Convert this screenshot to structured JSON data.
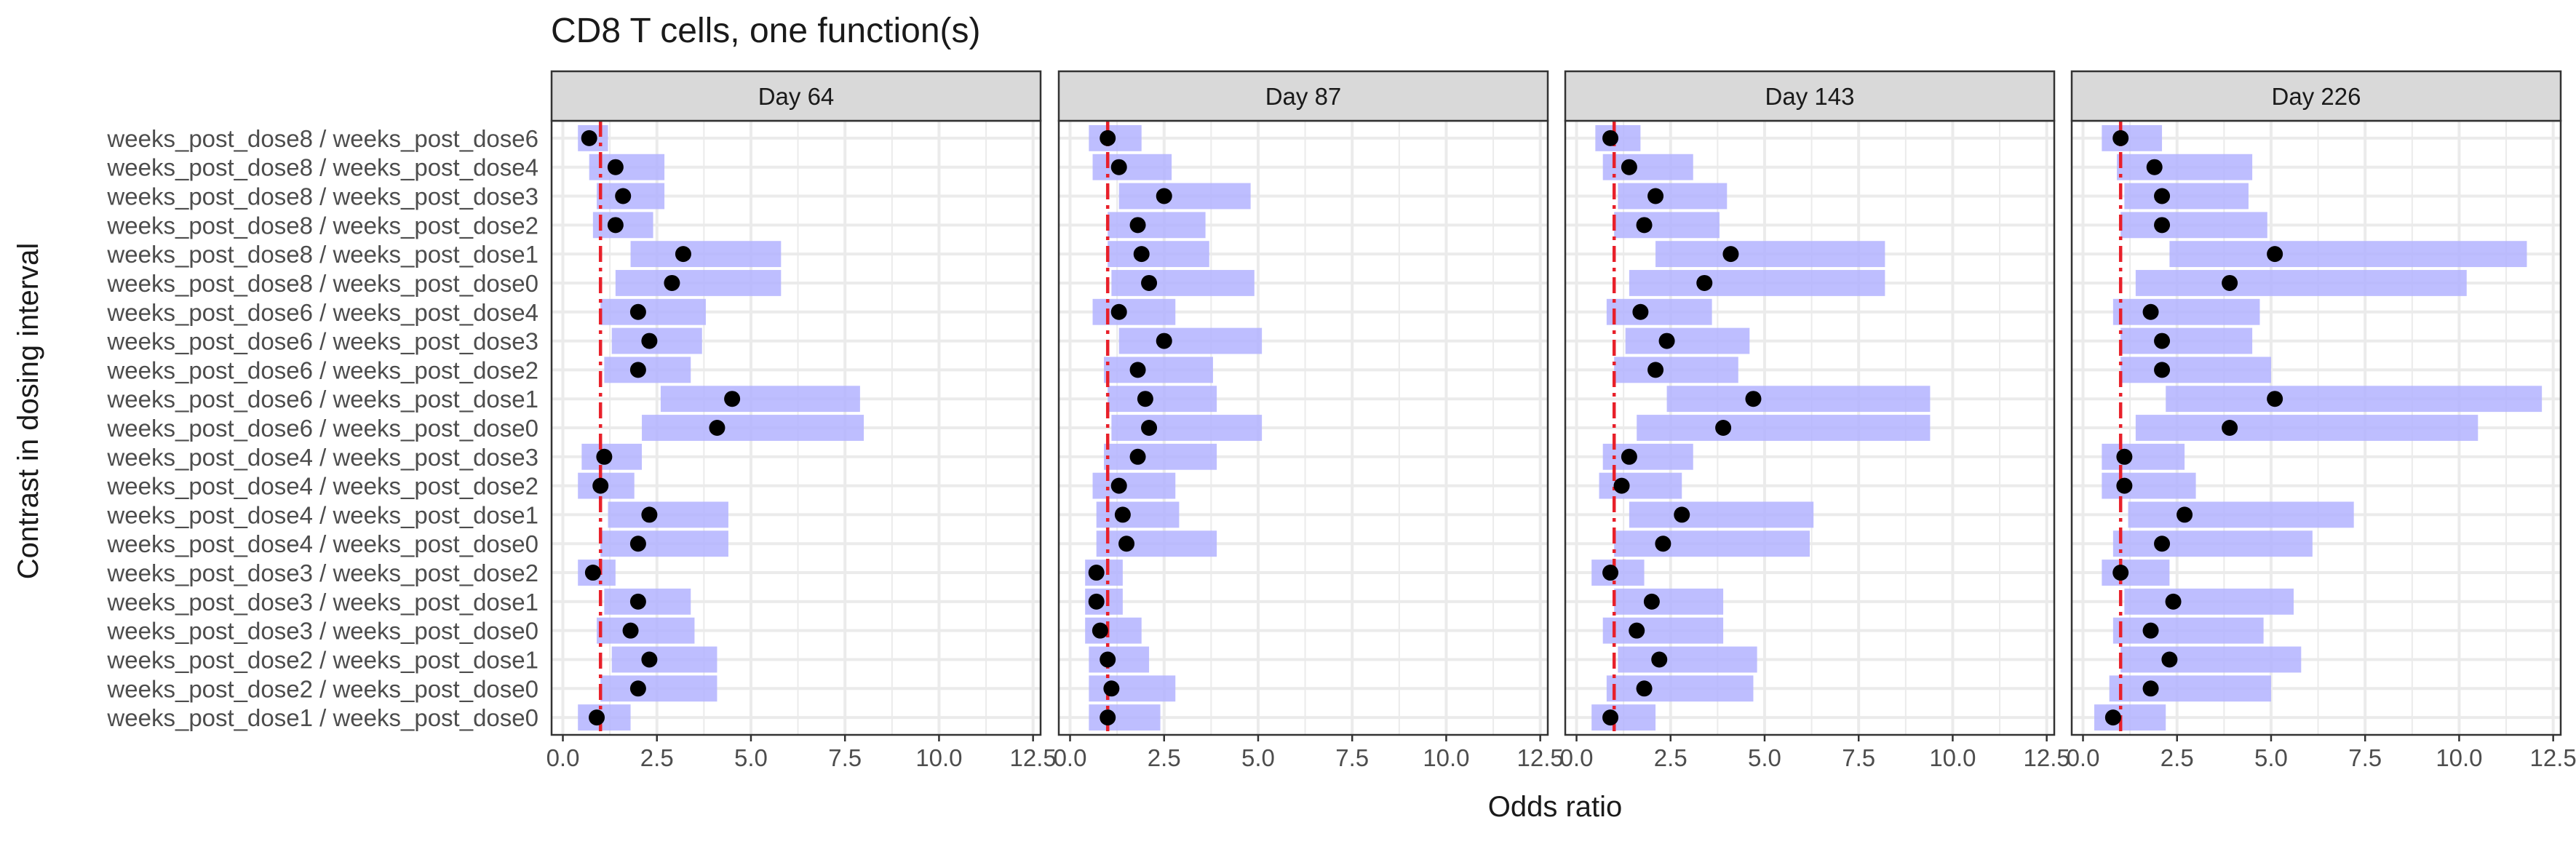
{
  "chart_data": {
    "type": "forest",
    "title": "CD8 T cells, one function(s)",
    "xlabel": "Odds ratio",
    "ylabel": "Contrast in dosing interval",
    "xlim": [
      -0.3,
      12.7
    ],
    "xticks": [
      0.0,
      2.5,
      5.0,
      7.5,
      10.0,
      12.5
    ],
    "xtick_labels": [
      "0.0",
      "2.5",
      "5.0",
      "7.5",
      "10.0",
      "12.5"
    ],
    "reference_line": 1,
    "grid": true,
    "colors": {
      "interval": "#b3b3ff",
      "point": "#000000",
      "reference": "#e8202a",
      "strip_bg": "#d9d9d9",
      "grid": "#ebebeb"
    },
    "categories": [
      "weeks_post_dose8 / weeks_post_dose6",
      "weeks_post_dose8 / weeks_post_dose4",
      "weeks_post_dose8 / weeks_post_dose3",
      "weeks_post_dose8 / weeks_post_dose2",
      "weeks_post_dose8 / weeks_post_dose1",
      "weeks_post_dose8 / weeks_post_dose0",
      "weeks_post_dose6 / weeks_post_dose4",
      "weeks_post_dose6 / weeks_post_dose3",
      "weeks_post_dose6 / weeks_post_dose2",
      "weeks_post_dose6 / weeks_post_dose1",
      "weeks_post_dose6 / weeks_post_dose0",
      "weeks_post_dose4 / weeks_post_dose3",
      "weeks_post_dose4 / weeks_post_dose2",
      "weeks_post_dose4 / weeks_post_dose1",
      "weeks_post_dose4 / weeks_post_dose0",
      "weeks_post_dose3 / weeks_post_dose2",
      "weeks_post_dose3 / weeks_post_dose1",
      "weeks_post_dose3 / weeks_post_dose0",
      "weeks_post_dose2 / weeks_post_dose1",
      "weeks_post_dose2 / weeks_post_dose0",
      "weeks_post_dose1 / weeks_post_dose0"
    ],
    "panels": [
      {
        "label": "Day 64",
        "estimate": [
          0.7,
          1.4,
          1.6,
          1.4,
          3.2,
          2.9,
          2.0,
          2.3,
          2.0,
          4.5,
          4.1,
          1.1,
          1.0,
          2.3,
          2.0,
          0.8,
          2.0,
          1.8,
          2.3,
          2.0,
          0.9
        ],
        "lower": [
          0.4,
          0.7,
          0.9,
          0.8,
          1.8,
          1.4,
          1.0,
          1.3,
          1.1,
          2.6,
          2.1,
          0.5,
          0.4,
          1.2,
          1.0,
          0.4,
          1.1,
          0.9,
          1.3,
          1.0,
          0.4
        ],
        "upper": [
          1.2,
          2.7,
          2.7,
          2.4,
          5.8,
          5.8,
          3.8,
          3.7,
          3.4,
          7.9,
          8.0,
          2.1,
          1.9,
          4.4,
          4.4,
          1.4,
          3.4,
          3.5,
          4.1,
          4.1,
          1.8
        ]
      },
      {
        "label": "Day 87",
        "estimate": [
          1.0,
          1.3,
          2.5,
          1.8,
          1.9,
          2.1,
          1.3,
          2.5,
          1.8,
          2.0,
          2.1,
          1.8,
          1.3,
          1.4,
          1.5,
          0.7,
          0.7,
          0.8,
          1.0,
          1.1,
          1.0
        ],
        "lower": [
          0.5,
          0.6,
          1.3,
          1.0,
          1.0,
          1.1,
          0.6,
          1.3,
          0.9,
          1.0,
          1.1,
          0.9,
          0.6,
          0.7,
          0.7,
          0.4,
          0.4,
          0.4,
          0.5,
          0.5,
          0.5
        ],
        "upper": [
          1.9,
          2.7,
          4.8,
          3.6,
          3.7,
          4.9,
          2.8,
          5.1,
          3.8,
          3.9,
          5.1,
          3.9,
          2.8,
          2.9,
          3.9,
          1.4,
          1.4,
          1.9,
          2.1,
          2.8,
          2.4
        ]
      },
      {
        "label": "Day 143",
        "estimate": [
          0.9,
          1.4,
          2.1,
          1.8,
          4.1,
          3.4,
          1.7,
          2.4,
          2.1,
          4.7,
          3.9,
          1.4,
          1.2,
          2.8,
          2.3,
          0.9,
          2.0,
          1.6,
          2.2,
          1.8,
          0.9
        ],
        "lower": [
          0.5,
          0.7,
          1.1,
          1.0,
          2.1,
          1.4,
          0.8,
          1.3,
          1.0,
          2.4,
          1.6,
          0.7,
          0.6,
          1.4,
          1.0,
          0.4,
          1.0,
          0.7,
          1.1,
          0.8,
          0.4
        ],
        "upper": [
          1.7,
          3.1,
          4.0,
          3.8,
          8.2,
          8.2,
          3.6,
          4.6,
          4.3,
          9.4,
          9.4,
          3.1,
          2.8,
          6.3,
          6.2,
          1.8,
          3.9,
          3.9,
          4.8,
          4.7,
          2.1
        ]
      },
      {
        "label": "Day 226",
        "estimate": [
          1.0,
          1.9,
          2.1,
          2.1,
          5.1,
          3.9,
          1.8,
          2.1,
          2.1,
          5.1,
          3.9,
          1.1,
          1.1,
          2.7,
          2.1,
          1.0,
          2.4,
          1.8,
          2.3,
          1.8,
          0.8
        ],
        "lower": [
          0.5,
          0.9,
          1.1,
          1.0,
          2.3,
          1.4,
          0.8,
          1.0,
          1.0,
          2.2,
          1.4,
          0.5,
          0.5,
          1.2,
          0.8,
          0.5,
          1.1,
          0.8,
          1.0,
          0.7,
          0.3
        ],
        "upper": [
          2.1,
          4.5,
          4.4,
          4.9,
          11.8,
          10.2,
          4.7,
          4.5,
          5.0,
          12.2,
          10.5,
          2.7,
          3.0,
          7.2,
          6.1,
          2.3,
          5.6,
          4.8,
          5.8,
          5.0,
          2.2
        ]
      }
    ]
  }
}
